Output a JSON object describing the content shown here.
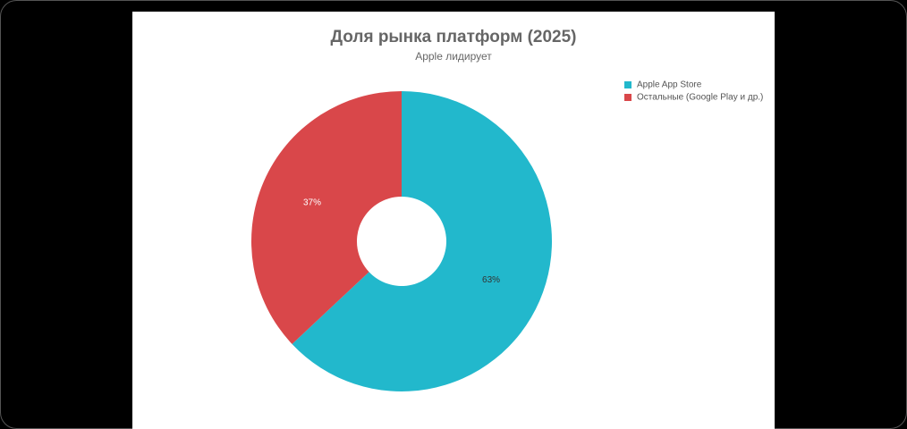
{
  "chart_data": {
    "type": "donut",
    "title": "Доля рынка платформ (2025)",
    "subtitle": "Apple лидирует",
    "categories": [
      "Apple App Store",
      "Остальные (Google Play и др.)"
    ],
    "values": [
      63,
      37
    ],
    "value_labels": [
      "63%",
      "37%"
    ],
    "colors": [
      "#22b8cc",
      "#d9474a"
    ],
    "legend": "top-right"
  }
}
